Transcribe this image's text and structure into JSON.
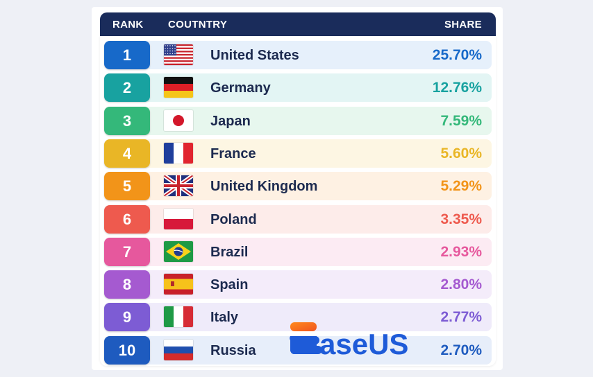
{
  "header": {
    "rank_label": "RANK",
    "country_label": "COUTNTRY",
    "share_label": "SHARE"
  },
  "watermark": {
    "text": "EaseUS"
  },
  "chart_data": {
    "type": "table",
    "columns": [
      "RANK",
      "COUTNTRY",
      "SHARE"
    ],
    "rows": [
      {
        "rank": "1",
        "country": "United States",
        "share": "25.70%",
        "flag": "us-flag",
        "color": "#1769c9",
        "bg": "#e6f0fb"
      },
      {
        "rank": "2",
        "country": "Germany",
        "share": "12.76%",
        "flag": "de-flag",
        "color": "#18a2a0",
        "bg": "#e3f5f4"
      },
      {
        "rank": "3",
        "country": "Japan",
        "share": "7.59%",
        "flag": "jp-flag",
        "color": "#34b87a",
        "bg": "#e7f7ee"
      },
      {
        "rank": "4",
        "country": "France",
        "share": "5.60%",
        "flag": "fr-flag",
        "color": "#e9b626",
        "bg": "#fdf6e3"
      },
      {
        "rank": "5",
        "country": "United Kingdom",
        "share": "5.29%",
        "flag": "gb-flag",
        "color": "#f29419",
        "bg": "#fef1e3"
      },
      {
        "rank": "6",
        "country": "Poland",
        "share": "3.35%",
        "flag": "pl-flag",
        "color": "#ee5a4e",
        "bg": "#fdecea"
      },
      {
        "rank": "7",
        "country": "Brazil",
        "share": "2.93%",
        "flag": "br-flag",
        "color": "#e6589d",
        "bg": "#fcebf3"
      },
      {
        "rank": "8",
        "country": "Spain",
        "share": "2.80%",
        "flag": "es-flag",
        "color": "#a55ad0",
        "bg": "#f4ecfa"
      },
      {
        "rank": "9",
        "country": "Italy",
        "share": "2.77%",
        "flag": "it-flag",
        "color": "#7d5cd4",
        "bg": "#efebfa"
      },
      {
        "rank": "10",
        "country": "Russia",
        "share": "2.70%",
        "flag": "ru-flag",
        "color": "#1e5bbf",
        "bg": "#e7eefa"
      }
    ]
  }
}
